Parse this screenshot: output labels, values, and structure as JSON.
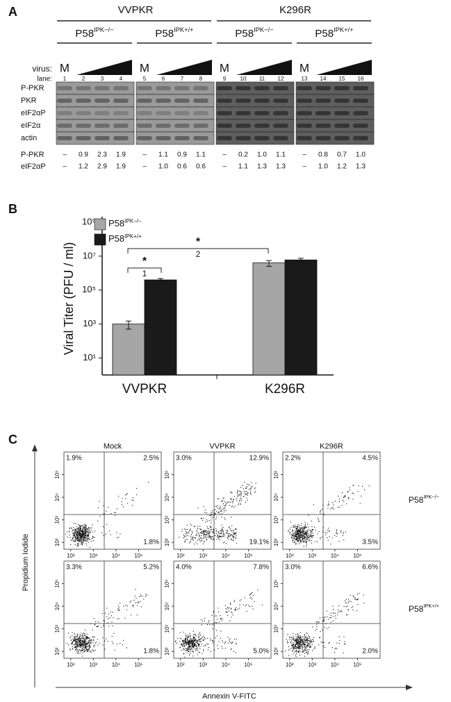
{
  "panel_labels": [
    "A",
    "B",
    "C"
  ],
  "blot": {
    "groups": [
      "VVPKR",
      "K296R"
    ],
    "subgroups": [
      "P58IPK−/−",
      "P58IPK+/+",
      "P58IPK−/−",
      "P58IPK+/+"
    ],
    "virus_label": "virus:",
    "mock_labels": [
      "M",
      "M",
      "M",
      "M"
    ],
    "lane_label": "lane:",
    "lanes": [
      1,
      2,
      3,
      4,
      5,
      6,
      7,
      8,
      9,
      10,
      11,
      12,
      13,
      14,
      15,
      16
    ],
    "rows": [
      "P-PKR",
      "PKR",
      "eIF2αP",
      "eIF2α",
      "actin"
    ],
    "quantification": [
      {
        "label": "P-PKR",
        "values": [
          "–",
          "0.9",
          "2.3",
          "1.9",
          "–",
          "1.1",
          "0.9",
          "1.1",
          "–",
          "0.2",
          "1.0",
          "1.1",
          "–",
          "0.8",
          "0.7",
          "1.0"
        ]
      },
      {
        "label": "eIF2αP",
        "values": [
          "–",
          "1.2",
          "2.9",
          "1.9",
          "–",
          "1.0",
          "0.6",
          "0.6",
          "–",
          "1.1",
          "1.3",
          "1.3",
          "–",
          "1.0",
          "1.2",
          "1.3"
        ]
      }
    ]
  },
  "chart_data": {
    "type": "bar",
    "ylabel": "Viral Titer (PFU / ml)",
    "categories": [
      "VVPKR",
      "K296R"
    ],
    "series": [
      {
        "name": "P58IPK−/−",
        "color": "#a6a6a6",
        "values": [
          1000,
          4000000
        ],
        "errors": [
          500,
          1500000
        ]
      },
      {
        "name": "P58IPK+/+",
        "color": "#1a1a1a",
        "values": [
          400000,
          6000000
        ],
        "errors": [
          80000,
          1500000
        ]
      }
    ],
    "ylim": [
      1,
      1000000000
    ],
    "yticks": [
      {
        "value": 10,
        "label": "10¹"
      },
      {
        "value": 1000,
        "label": "10³"
      },
      {
        "value": 100000,
        "label": "10⁵"
      },
      {
        "value": 10000000,
        "label": "10⁷"
      },
      {
        "value": 1000000000,
        "label": "10⁹"
      }
    ],
    "log_scale": true,
    "legend": "upper left",
    "annotations": [
      {
        "star": "*",
        "label": "1"
      },
      {
        "star": "*",
        "label": "2"
      }
    ]
  },
  "flow": {
    "columns": [
      "Mock",
      "VVPKR",
      "K296R"
    ],
    "rows": [
      "P58IPK−/−",
      "P58IPK+/+"
    ],
    "xlabel": "Annexin V-FITC",
    "ylabel": "Propidium Iodide",
    "ticks": [
      {
        "value": 100,
        "label": "10²"
      },
      {
        "value": 1000,
        "label": "10³"
      },
      {
        "value": 10000,
        "label": "10⁴"
      },
      {
        "value": 100000,
        "label": "10⁵"
      }
    ],
    "plots": [
      {
        "upper_left": "1.9%",
        "upper_right": "2.5%",
        "lower_right": "1.8%"
      },
      {
        "upper_left": "3.0%",
        "upper_right": "12.9%",
        "lower_right": "19.1%"
      },
      {
        "upper_left": "2.2%",
        "upper_right": "4.5%",
        "lower_right": "3.5%"
      },
      {
        "upper_left": "3.3%",
        "upper_right": "5.2%",
        "lower_right": "1.8%"
      },
      {
        "upper_left": "4.0%",
        "upper_right": "7.8%",
        "lower_right": "5.0%"
      },
      {
        "upper_left": "3.0%",
        "upper_right": "6.6%",
        "lower_right": "2.0%"
      }
    ]
  }
}
